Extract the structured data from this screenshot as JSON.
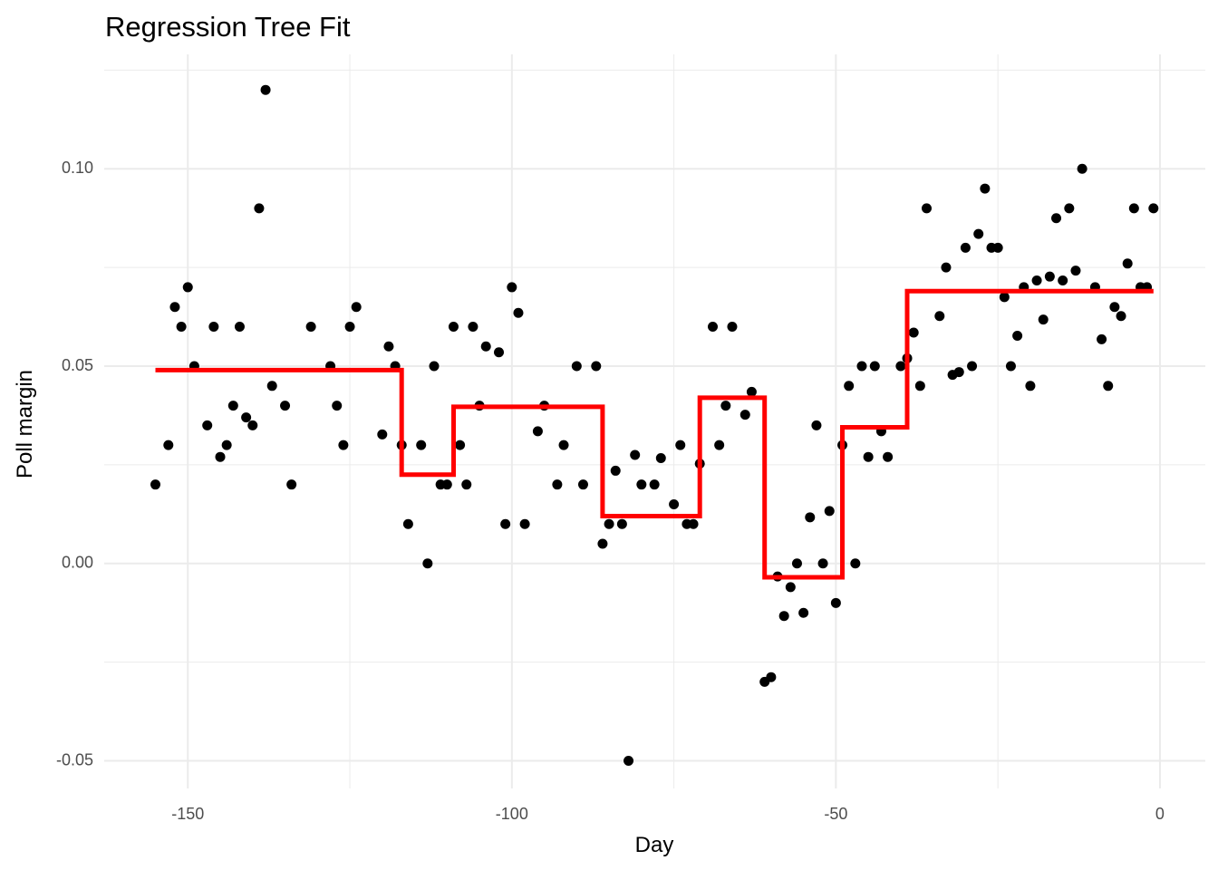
{
  "chart_data": {
    "type": "scatter",
    "title": "Regression Tree Fit",
    "x_label": "Day",
    "y_label": "Poll margin",
    "xlim": [
      -162.9,
      7
    ],
    "ylim": [
      -0.057,
      0.129
    ],
    "xticks": [
      -150,
      -100,
      -50,
      0
    ],
    "yticks": [
      -0.05,
      {
        "value": 0,
        "label": "0.00"
      },
      0.05,
      {
        "value": 0.1,
        "label": "0.10"
      }
    ],
    "x_minor_ticks": [
      -125,
      -75,
      -25
    ],
    "y_minor_ticks": [
      -0.025,
      0.025,
      0.075,
      0.125
    ],
    "grid": true,
    "points": {
      "color": "#000000",
      "x": [
        -155,
        -153,
        -152,
        -151,
        -150,
        -149,
        -147,
        -146,
        -145,
        -144,
        -143,
        -142,
        -141,
        -140,
        -139,
        -138,
        -137,
        -135,
        -134,
        -131,
        -128,
        -127,
        -126,
        -125,
        -124,
        -120,
        -119,
        -118,
        -117,
        -116,
        -114,
        -113,
        -112,
        -111,
        -110,
        -109,
        -108,
        -107,
        -106,
        -105,
        -104,
        -102,
        -101,
        -100,
        -99,
        -98,
        -96,
        -95,
        -93,
        -92,
        -90,
        -89,
        -87,
        -86,
        -85,
        -84,
        -83,
        -82,
        -81,
        -80,
        -78,
        -77,
        -75,
        -74,
        -73,
        -72,
        -71,
        -69,
        -68,
        -67,
        -66,
        -64,
        -63,
        -61,
        -60,
        -59,
        -58,
        -57,
        -56,
        -55,
        -54,
        -53,
        -52,
        -51,
        -50,
        -49,
        -48,
        -47,
        -46,
        -45,
        -44,
        -43,
        -42,
        -40,
        -39,
        -38,
        -37,
        -36,
        -34,
        -33,
        -32,
        -31,
        -30,
        -29,
        -28,
        -27,
        -26,
        -25,
        -24,
        -23,
        -22,
        -21,
        -20,
        -19,
        -18,
        -17,
        -16,
        -15,
        -14,
        -13,
        -12,
        -10,
        -9,
        -8,
        -7,
        -6,
        -5,
        -4,
        -3,
        -2,
        -1
      ],
      "values": [
        0.02,
        0.03,
        0.065,
        0.06,
        0.07,
        0.05,
        0.035,
        0.06,
        0.027,
        0.03,
        0.04,
        0.06,
        0.037,
        0.035,
        0.09,
        0.12,
        0.045,
        0.04,
        0.02,
        0.06,
        0.05,
        0.04,
        0.03,
        0.06,
        0.065,
        0.0327,
        0.055,
        0.05,
        0.03,
        0.01,
        0.03,
        0.0,
        0.05,
        0.02,
        0.02,
        0.06,
        0.03,
        0.02,
        0.06,
        0.04,
        0.055,
        0.0535,
        0.01,
        0.07,
        0.0635,
        0.01,
        0.0335,
        0.04,
        0.02,
        0.03,
        0.05,
        0.02,
        0.05,
        0.005,
        0.01,
        0.0235,
        0.01,
        -0.05,
        0.0275,
        0.02,
        0.02,
        0.0267,
        0.015,
        0.03,
        0.01,
        0.01,
        0.0253,
        0.06,
        0.03,
        0.04,
        0.06,
        0.0377,
        0.0435,
        -0.03,
        -0.0288,
        -0.0033,
        -0.0133,
        -0.006,
        0.0,
        -0.0125,
        0.0117,
        0.035,
        0.0,
        0.0133,
        -0.01,
        0.03,
        0.045,
        0.0,
        0.05,
        0.027,
        0.05,
        0.0335,
        0.027,
        0.05,
        0.052,
        0.0585,
        0.045,
        0.09,
        0.0627,
        0.075,
        0.0478,
        0.0485,
        0.08,
        0.05,
        0.0835,
        0.095,
        0.08,
        0.08,
        0.0675,
        0.05,
        0.0577,
        0.07,
        0.045,
        0.0717,
        0.0618,
        0.0727,
        0.0875,
        0.0717,
        0.09,
        0.0742,
        0.1,
        0.07,
        0.0568,
        0.045,
        0.065,
        0.0627,
        0.076,
        0.09,
        0.07,
        0.07,
        0.09
      ]
    },
    "fit": {
      "color": "#ff0000",
      "x": [
        -155,
        -117,
        -117,
        -109,
        -109,
        -86,
        -86,
        -71,
        -71,
        -61,
        -61,
        -49,
        -49,
        -39,
        -39,
        -1
      ],
      "values": [
        0.049,
        0.049,
        0.0225,
        0.0225,
        0.0397,
        0.0397,
        0.012,
        0.012,
        0.042,
        0.042,
        -0.0035,
        -0.0035,
        0.0345,
        0.0345,
        0.069,
        0.069
      ]
    }
  }
}
